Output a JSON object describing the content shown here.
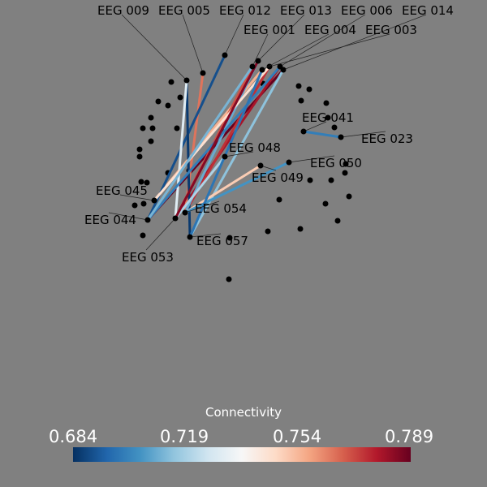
{
  "colorbar": {
    "title": "Connectivity",
    "ticks": [
      "0.684",
      "0.719",
      "0.754",
      "0.789"
    ],
    "range": [
      0.684,
      0.789
    ],
    "colormap": "RdBu_r"
  },
  "sensor_labels": [
    "EEG 012",
    "EEG 013",
    "EEG 006",
    "EEG 014",
    "EEG 003",
    "EEG 004",
    "EEG 001",
    "EEG 005",
    "EEG 009",
    "EEG 041",
    "EEG 023",
    "EEG 048",
    "EEG 049",
    "EEG 050",
    "EEG 045",
    "EEG 044",
    "EEG 053",
    "EEG 054",
    "EEG 057"
  ],
  "connections": [
    {
      "a": "EEG 044",
      "b": "EEG 014",
      "value": 0.789
    },
    {
      "a": "EEG 053",
      "b": "EEG 006",
      "value": 0.78
    },
    {
      "a": "EEG 054",
      "b": "EEG 003",
      "value": 0.775
    },
    {
      "a": "EEG 045",
      "b": "EEG 004",
      "value": 0.755
    },
    {
      "a": "EEG 053",
      "b": "EEG 001",
      "value": 0.77
    },
    {
      "a": "EEG 054",
      "b": "EEG 005",
      "value": 0.765
    },
    {
      "a": "EEG 044",
      "b": "EEG 012",
      "value": 0.69
    },
    {
      "a": "EEG 057",
      "b": "EEG 009",
      "value": 0.686
    },
    {
      "a": "EEG 053",
      "b": "EEG 009",
      "value": 0.73
    },
    {
      "a": "EEG 054",
      "b": "EEG 013",
      "value": 0.71
    },
    {
      "a": "EEG 057",
      "b": "EEG 014",
      "value": 0.715
    },
    {
      "a": "EEG 044",
      "b": "EEG 006",
      "value": 0.7
    },
    {
      "a": "EEG 045",
      "b": "EEG 003",
      "value": 0.745
    },
    {
      "a": "EEG 053",
      "b": "EEG 048",
      "value": 0.72
    },
    {
      "a": "EEG 054",
      "b": "EEG 049",
      "value": 0.75
    },
    {
      "a": "EEG 054",
      "b": "EEG 050",
      "value": 0.705
    },
    {
      "a": "EEG 041",
      "b": "EEG 023",
      "value": 0.7
    },
    {
      "a": "EEG 057",
      "b": "EEG 004",
      "value": 0.698
    },
    {
      "a": "EEG 053",
      "b": "EEG 013",
      "value": 0.785
    },
    {
      "a": "EEG 044",
      "b": "EEG 001",
      "value": 0.712
    }
  ]
}
